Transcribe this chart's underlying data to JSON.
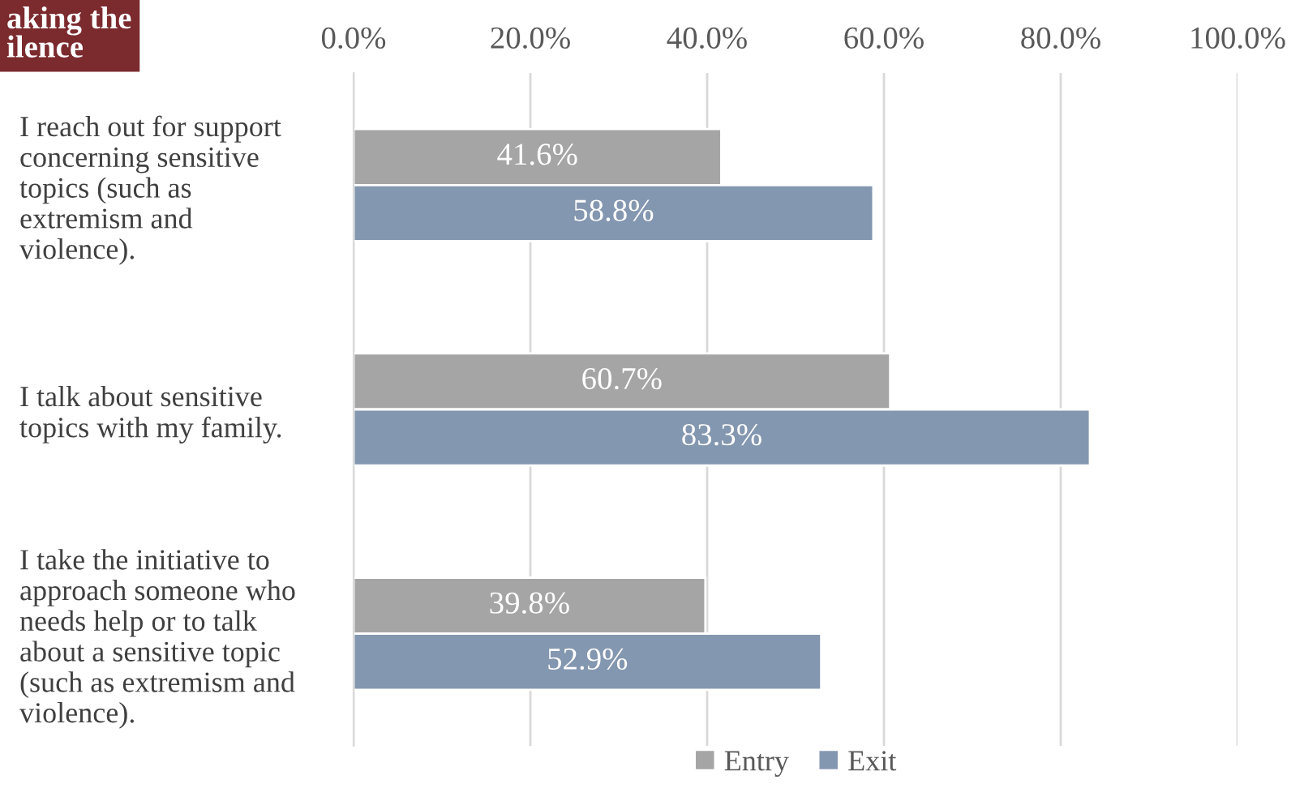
{
  "chart_data": {
    "type": "bar",
    "orientation": "horizontal",
    "title": "aking the\nilence",
    "categories": [
      "I reach out for support\nconcerning sensitive\ntopics (such as\nextremism and\nviolence).",
      "I talk about sensitive\ntopics with my family.",
      "I take the initiative to\napproach someone who\nneeds help or to talk\nabout a sensitive topic\n(such as extremism and\nviolence)."
    ],
    "series": [
      {
        "name": "Entry",
        "color": "#a5a5a5",
        "values": [
          41.6,
          60.7,
          39.8
        ],
        "value_labels": [
          "41.6%",
          "60.7%",
          "39.8%"
        ]
      },
      {
        "name": "Exit",
        "color": "#8497b0",
        "values": [
          58.8,
          83.3,
          52.9
        ],
        "value_labels": [
          "58.8%",
          "83.3%",
          "52.9%"
        ]
      }
    ],
    "xlim": [
      0,
      100
    ],
    "xticks": [
      {
        "value": 0,
        "label": "0.0%"
      },
      {
        "value": 20,
        "label": "20.0%"
      },
      {
        "value": 40,
        "label": "40.0%"
      },
      {
        "value": 60,
        "label": "60.0%"
      },
      {
        "value": 80,
        "label": "80.0%"
      },
      {
        "value": 100,
        "label": "100.0%"
      }
    ],
    "grid": "x",
    "legend": "bottom"
  }
}
